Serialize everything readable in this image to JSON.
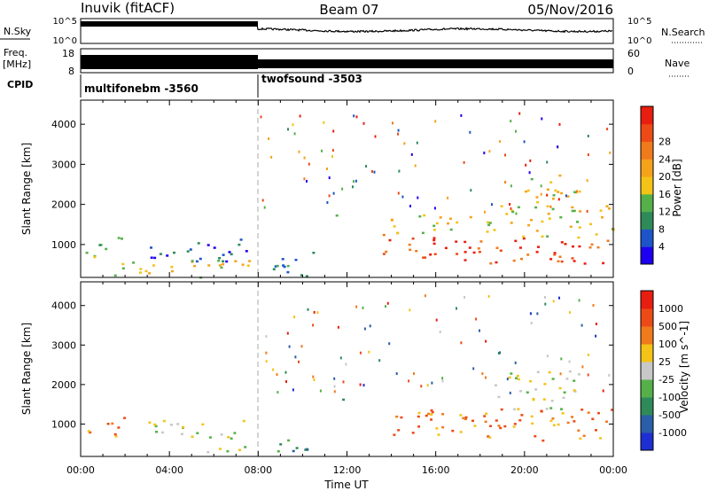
{
  "header": {
    "station": "Inuvik (fitACF)",
    "beam": "Beam 07",
    "date": "05/Nov/2016"
  },
  "side_labels": {
    "nsky": "N.Sky",
    "freq_line1": "Freq.",
    "freq_line2": "[MHz]",
    "cpid": "CPID",
    "nsearch": "N.Search",
    "nave": "Nave"
  },
  "nsky_ticks": [
    "10^5",
    "10^0"
  ],
  "nsearch_ticks": [
    "10^5",
    "10^0"
  ],
  "freq_ticks": [
    "18",
    "8"
  ],
  "nave_ticks": [
    "60",
    "0"
  ],
  "cpid_segments": [
    {
      "name": "multifonebm -3560",
      "start_hour": 0,
      "end_hour": 8
    },
    {
      "name": "twofsound -3503",
      "start_hour": 8,
      "end_hour": 24
    }
  ],
  "chart_data": [
    {
      "type": "heatmap",
      "quantity": "power",
      "xlabel": "",
      "ylabel": "Slant Range [km]",
      "xlim": [
        0,
        24
      ],
      "ylim": [
        180,
        4600
      ],
      "yticks": [
        1000,
        2000,
        3000,
        4000
      ],
      "colorbar": {
        "label": "Power [dB]",
        "ticks": [
          "4",
          "8",
          "12",
          "16",
          "20",
          "24",
          "28"
        ],
        "colors": [
          "#1e00f0",
          "#1d55c8",
          "#2f8a5a",
          "#55b04a",
          "#f3c317",
          "#f5a31a",
          "#f07a1c",
          "#ec4b17",
          "#e81e10"
        ]
      },
      "regions": [
        {
          "t0": 0.0,
          "t1": 2.0,
          "r0": 700,
          "r1": 1200,
          "level": 3
        },
        {
          "t0": 2.8,
          "t1": 7.5,
          "r0": 600,
          "r1": 1150,
          "level": 1
        },
        {
          "t0": 1.5,
          "t1": 7.8,
          "r0": 200,
          "r1": 650,
          "level": 4
        },
        {
          "t0": 8.5,
          "t1": 10.5,
          "r0": 200,
          "r1": 900,
          "level": 2
        },
        {
          "t0": 11.4,
          "t1": 11.8,
          "r0": 1500,
          "r1": 1900,
          "level": 3
        },
        {
          "t0": 13.5,
          "t1": 17.0,
          "r0": 700,
          "r1": 1300,
          "level": 7
        },
        {
          "t0": 13.8,
          "t1": 18.0,
          "r0": 1300,
          "r1": 1800,
          "level": 4
        },
        {
          "t0": 17.0,
          "t1": 24.0,
          "r0": 550,
          "r1": 1200,
          "level": 7
        },
        {
          "t0": 18.0,
          "t1": 24.0,
          "r0": 1200,
          "r1": 2000,
          "level": 4
        },
        {
          "t0": 20.0,
          "t1": 22.5,
          "r0": 2000,
          "r1": 2800,
          "level": 4
        }
      ]
    },
    {
      "type": "heatmap",
      "quantity": "velocity",
      "xlabel": "Time UT",
      "ylabel": "Slant Range [km]",
      "xlim": [
        0,
        24
      ],
      "ylim": [
        180,
        4600
      ],
      "yticks": [
        1000,
        2000,
        3000,
        4000
      ],
      "xticks": [
        "00:00",
        "04:00",
        "08:00",
        "12:00",
        "16:00",
        "20:00",
        "00:00"
      ],
      "colorbar": {
        "label": "Velocity [m s^-1]",
        "ticks": [
          "1000",
          "500",
          "100",
          "25",
          "-25",
          "-100",
          "-500",
          "-1000"
        ],
        "colors": [
          "#1e2fd2",
          "#2a5ea8",
          "#2f8a5a",
          "#55b04a",
          "#c8c8c8",
          "#f3c317",
          "#f07a1c",
          "#ec4b17",
          "#e81e10"
        ]
      },
      "regions": [
        {
          "t0": 0.0,
          "t1": 2.0,
          "r0": 700,
          "r1": 1200,
          "level": 6
        },
        {
          "t0": 3.0,
          "t1": 7.5,
          "r0": 700,
          "r1": 1150,
          "level": 4
        },
        {
          "t0": 5.0,
          "t1": 7.5,
          "r0": 300,
          "r1": 700,
          "level": 4
        },
        {
          "t0": 8.5,
          "t1": 10.5,
          "r0": 200,
          "r1": 700,
          "level": 2
        },
        {
          "t0": 11.4,
          "t1": 11.8,
          "r0": 1500,
          "r1": 1900,
          "level": 3
        },
        {
          "t0": 13.5,
          "t1": 18.0,
          "r0": 700,
          "r1": 1400,
          "level": 6
        },
        {
          "t0": 18.0,
          "t1": 24.0,
          "r0": 600,
          "r1": 1400,
          "level": 6
        },
        {
          "t0": 18.5,
          "t1": 22.5,
          "r0": 1400,
          "r1": 2400,
          "level": 4
        }
      ]
    }
  ]
}
